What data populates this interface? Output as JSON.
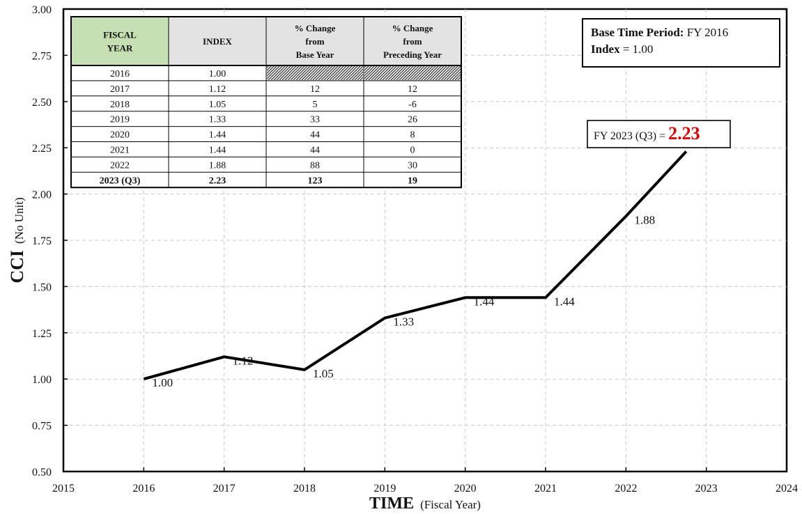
{
  "chart_data": {
    "type": "line",
    "ylabel": "CCI",
    "ylabel_sub": "(No Unit)",
    "xlabel": "TIME",
    "xlabel_sub": "(Fiscal Year)",
    "xlim": [
      2015,
      2024
    ],
    "ylim": [
      0.5,
      3.0
    ],
    "x_ticks": [
      "2015",
      "2016",
      "2017",
      "2018",
      "2019",
      "2020",
      "2021",
      "2022",
      "2023",
      "2024"
    ],
    "y_ticks": [
      "0.50",
      "0.75",
      "1.00",
      "1.25",
      "1.50",
      "1.75",
      "2.00",
      "2.25",
      "2.50",
      "2.75",
      "3.00"
    ],
    "grid": true,
    "series": [
      {
        "x": [
          2016,
          2017,
          2018,
          2019,
          2020,
          2021,
          2022,
          2022.75
        ],
        "y": [
          1.0,
          1.12,
          1.05,
          1.33,
          1.44,
          1.44,
          1.88,
          2.23
        ],
        "labels": [
          "1.00",
          "1.12",
          "1.05",
          "1.33",
          "1.44",
          "1.44",
          "1.88",
          ""
        ],
        "color": "#000000"
      }
    ],
    "callout": {
      "prefix": "FY 2023 (Q3) = ",
      "value": "2.23",
      "value_color": "#e00000"
    },
    "base_box": {
      "line1_bold": "Base Time Period:",
      "line1_rest": " FY 2016",
      "line2_bold": "Index",
      "line2_rest": " = 1.00"
    },
    "table": {
      "headers": [
        [
          "FISCAL",
          "YEAR"
        ],
        [
          "INDEX"
        ],
        [
          "% Change",
          "from",
          "Base Year"
        ],
        [
          "% Change",
          "from",
          "Preceding Year"
        ]
      ],
      "header_colors": [
        "#c6dfb3",
        "#e3e3e3",
        "#e3e3e3",
        "#e3e3e3"
      ],
      "rows": [
        [
          "2016",
          "1.00",
          "",
          ""
        ],
        [
          "2017",
          "1.12",
          "12",
          "12"
        ],
        [
          "2018",
          "1.05",
          "5",
          "-6"
        ],
        [
          "2019",
          "1.33",
          "33",
          "26"
        ],
        [
          "2020",
          "1.44",
          "44",
          "8"
        ],
        [
          "2021",
          "1.44",
          "44",
          "0"
        ],
        [
          "2022",
          "1.88",
          "88",
          "30"
        ],
        [
          "2023 (Q3)",
          "2.23",
          "123",
          "19"
        ]
      ],
      "highlight_color": "#e00000"
    }
  }
}
